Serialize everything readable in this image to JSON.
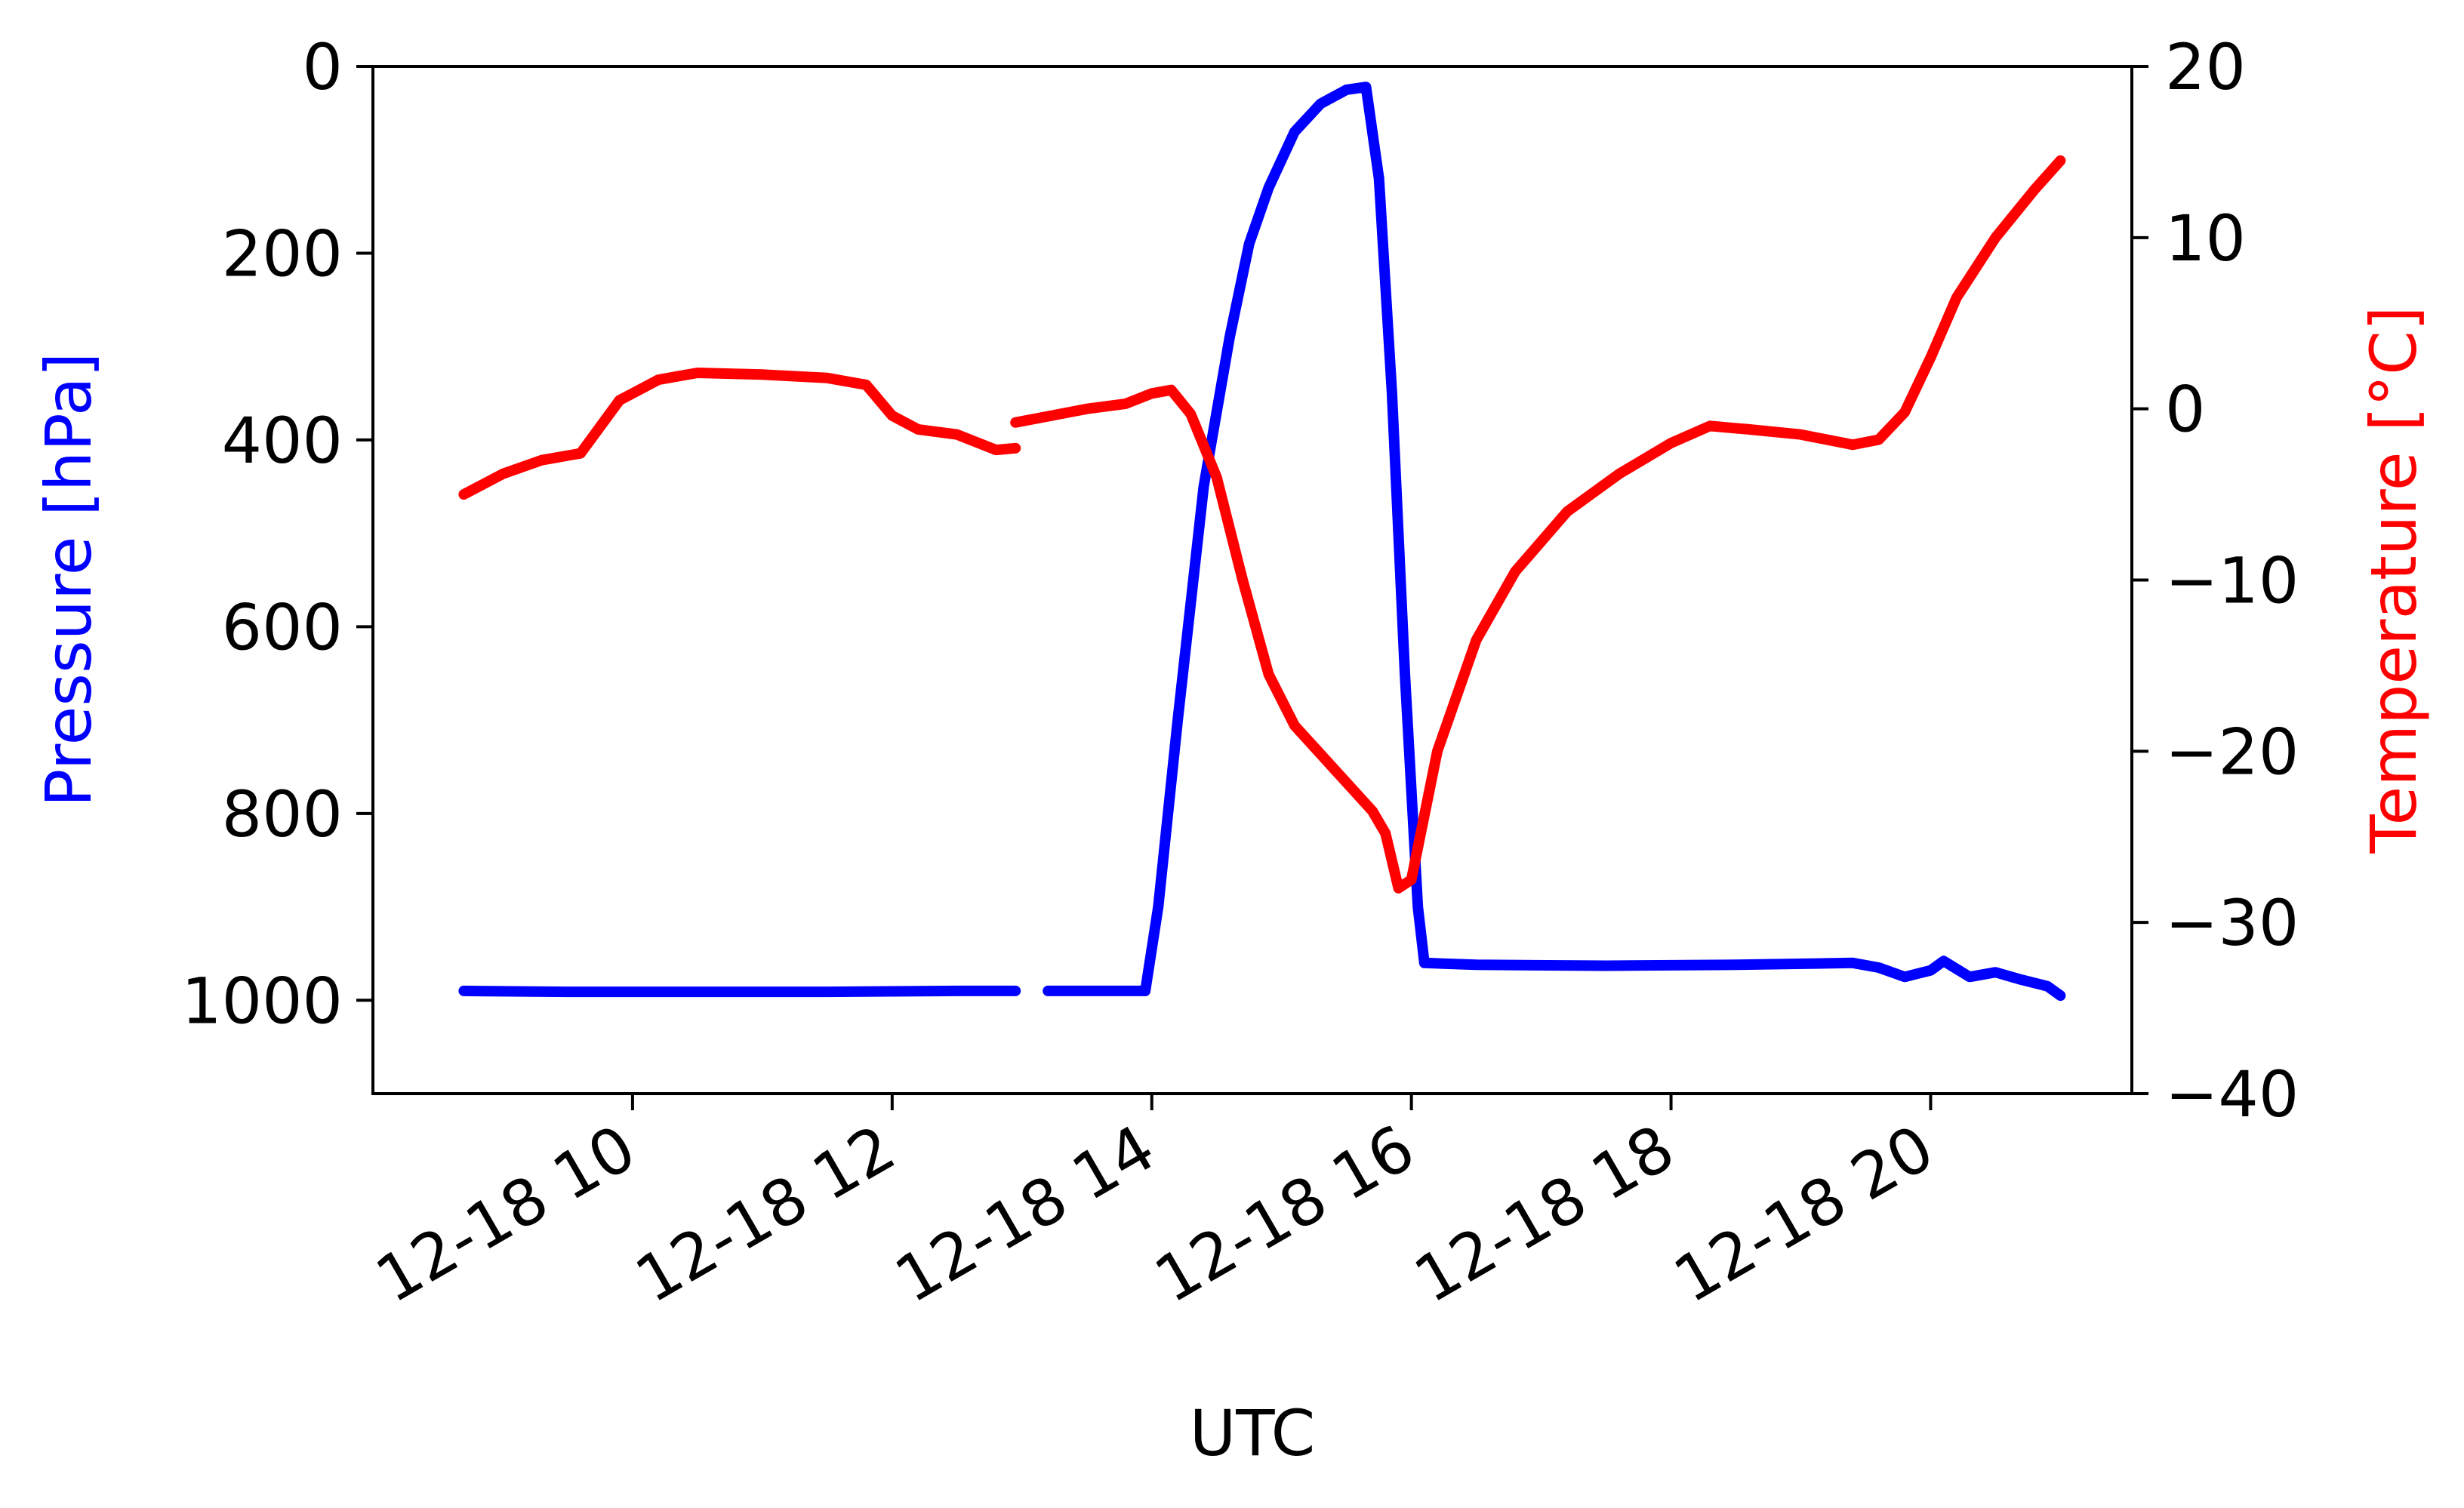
{
  "chart_data": {
    "type": "line",
    "xlabel": "UTC",
    "ylabel_left": "Pressure [hPa]",
    "ylabel_right": "Temperature [°C]",
    "colors": {
      "pressure": "#0000ff",
      "temperature": "#ff0000",
      "axes": "#000000"
    },
    "x_ticks": [
      "12-18 10",
      "12-18 12",
      "12-18 14",
      "12-18 16",
      "12-18 18",
      "12-18 20"
    ],
    "x_tick_hours": [
      10,
      12,
      14,
      16,
      18,
      20
    ],
    "xlim_hours": [
      8.0,
      21.55
    ],
    "y_left_ticks": [
      "0",
      "200",
      "400",
      "600",
      "800",
      "1000"
    ],
    "y_left_tick_values": [
      0,
      200,
      400,
      600,
      800,
      1000
    ],
    "y_left_lim": [
      1100,
      0
    ],
    "y_left_inverted": true,
    "y_right_ticks": [
      "20",
      "10",
      "0",
      "−10",
      "−20",
      "−30",
      "−40"
    ],
    "y_right_tick_values": [
      20,
      10,
      0,
      -10,
      -20,
      -30,
      -40
    ],
    "y_right_lim": [
      -40,
      20
    ],
    "grid": false,
    "series": [
      {
        "name": "Pressure",
        "axis": "left",
        "segments": [
          [
            [
              8.7,
              990
            ],
            [
              9.5,
              991
            ],
            [
              10.5,
              991
            ],
            [
              11.5,
              991
            ],
            [
              12.5,
              990
            ],
            [
              12.95,
              990
            ]
          ],
          [
            [
              13.2,
              990
            ],
            [
              13.6,
              990
            ],
            [
              13.95,
              990
            ],
            [
              14.05,
              900
            ],
            [
              14.2,
              700
            ],
            [
              14.4,
              450
            ],
            [
              14.6,
              290
            ],
            [
              14.75,
              190
            ],
            [
              14.9,
              130
            ],
            [
              15.1,
              70
            ],
            [
              15.3,
              40
            ],
            [
              15.5,
              25
            ],
            [
              15.65,
              22
            ],
            [
              15.75,
              120
            ],
            [
              15.85,
              350
            ],
            [
              15.95,
              650
            ],
            [
              16.05,
              900
            ],
            [
              16.1,
              960
            ],
            [
              16.5,
              962
            ],
            [
              17.5,
              963
            ],
            [
              18.5,
              962
            ],
            [
              19.4,
              960
            ],
            [
              19.6,
              965
            ],
            [
              19.8,
              975
            ],
            [
              20.0,
              968
            ],
            [
              20.1,
              958
            ],
            [
              20.3,
              975
            ],
            [
              20.5,
              970
            ],
            [
              20.7,
              978
            ],
            [
              20.9,
              985
            ],
            [
              21.0,
              995
            ]
          ]
        ]
      },
      {
        "name": "Temperature",
        "axis": "right",
        "segments": [
          [
            [
              8.7,
              -5.0
            ],
            [
              9.0,
              -3.8
            ],
            [
              9.3,
              -3.0
            ],
            [
              9.6,
              -2.6
            ],
            [
              9.9,
              0.5
            ],
            [
              10.2,
              1.7
            ],
            [
              10.5,
              2.1
            ],
            [
              11.0,
              2.0
            ],
            [
              11.5,
              1.8
            ],
            [
              11.8,
              1.4
            ],
            [
              12.0,
              -0.4
            ],
            [
              12.2,
              -1.2
            ],
            [
              12.5,
              -1.5
            ],
            [
              12.8,
              -2.4
            ],
            [
              12.95,
              -2.3
            ]
          ],
          [
            [
              12.95,
              -0.8
            ],
            [
              13.5,
              0.0
            ],
            [
              13.8,
              0.3
            ],
            [
              14.0,
              0.9
            ],
            [
              14.15,
              1.1
            ],
            [
              14.3,
              -0.3
            ],
            [
              14.5,
              -4.0
            ],
            [
              14.7,
              -10.0
            ],
            [
              14.9,
              -15.5
            ],
            [
              15.1,
              -18.5
            ],
            [
              15.4,
              -21.0
            ],
            [
              15.7,
              -23.5
            ],
            [
              15.8,
              -24.8
            ],
            [
              15.9,
              -28.0
            ],
            [
              16.0,
              -27.5
            ],
            [
              16.2,
              -20.0
            ],
            [
              16.5,
              -13.5
            ],
            [
              16.8,
              -9.5
            ],
            [
              17.2,
              -6.0
            ],
            [
              17.6,
              -3.8
            ],
            [
              18.0,
              -2.0
            ],
            [
              18.3,
              -1.0
            ],
            [
              18.6,
              -1.2
            ],
            [
              19.0,
              -1.5
            ],
            [
              19.4,
              -2.1
            ],
            [
              19.6,
              -1.8
            ],
            [
              19.8,
              -0.2
            ],
            [
              20.0,
              3.0
            ],
            [
              20.2,
              6.5
            ],
            [
              20.5,
              10.0
            ],
            [
              20.8,
              12.8
            ],
            [
              21.0,
              14.5
            ]
          ]
        ]
      }
    ]
  }
}
